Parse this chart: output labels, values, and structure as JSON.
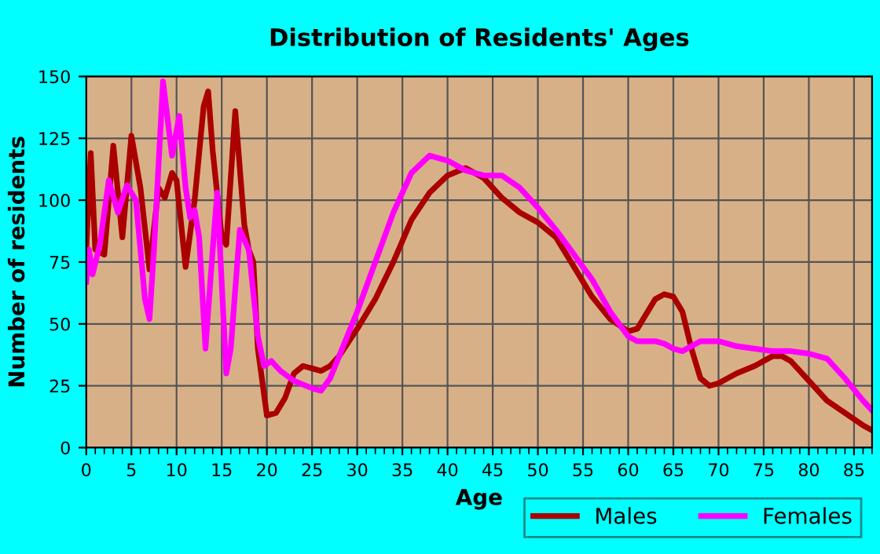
{
  "chart_data": {
    "type": "line",
    "title": "Distribution of Residents' Ages",
    "xlabel": "Age",
    "ylabel": "Number of residents",
    "xlim": [
      0,
      87
    ],
    "xticks": [
      0,
      5,
      10,
      15,
      20,
      25,
      30,
      35,
      40,
      45,
      50,
      55,
      60,
      65,
      70,
      75,
      80,
      85
    ],
    "ylim": [
      0,
      150
    ],
    "yticks": [
      0,
      25,
      50,
      75,
      100,
      125,
      150
    ],
    "grid": true,
    "legend": "bottom",
    "marker": "none",
    "line_style": "solid",
    "series": [
      {
        "name": "Males",
        "color": "#aa0000",
        "x": [
          0,
          0.5,
          1,
          2,
          3,
          4,
          5,
          6,
          7,
          8,
          8.7,
          9.5,
          10,
          11,
          12,
          13,
          13.5,
          14,
          15,
          15.5,
          16.5,
          17.5,
          18,
          18.5,
          19,
          20,
          21,
          22,
          23,
          24,
          25,
          26,
          27,
          28,
          30,
          32,
          34,
          36,
          38,
          40,
          42,
          44,
          46,
          48,
          50,
          52,
          54,
          56,
          58,
          60,
          61,
          62,
          63,
          64,
          65,
          66,
          67,
          68,
          69,
          70,
          72,
          74,
          76,
          77,
          78,
          80,
          82,
          84,
          86,
          87
        ],
        "values": [
          80,
          119,
          80,
          78,
          122,
          85,
          126,
          105,
          72,
          105,
          101,
          111,
          108,
          73,
          100,
          138,
          144,
          120,
          85,
          82,
          136,
          90,
          80,
          75,
          40,
          13,
          14,
          20,
          30,
          33,
          32,
          31,
          33,
          37,
          48,
          60,
          75,
          92,
          103,
          110,
          113,
          109,
          101,
          95,
          91,
          85,
          73,
          61,
          52,
          47,
          48,
          54,
          60,
          62,
          61,
          55,
          40,
          28,
          25,
          26,
          30,
          33,
          37,
          37,
          35,
          27,
          19,
          14,
          9,
          7
        ]
      },
      {
        "name": "Females",
        "color": "#ff00ff",
        "x": [
          0,
          0.3,
          0.7,
          1.5,
          2.5,
          3.5,
          4.5,
          5.5,
          6.5,
          7,
          7.5,
          8.5,
          9.5,
          10.3,
          11,
          11.5,
          12,
          12.5,
          13.2,
          14,
          14.5,
          15.5,
          16,
          17,
          18,
          19,
          19.7,
          20.5,
          21.5,
          23,
          25,
          26,
          27,
          28,
          30,
          32,
          34,
          36,
          38,
          40,
          42,
          44,
          46,
          48,
          50,
          52,
          54,
          56,
          58,
          60,
          61,
          62,
          63,
          64,
          65,
          66,
          67,
          68,
          70,
          72,
          74,
          76,
          78,
          80,
          82,
          84,
          86,
          87
        ],
        "values": [
          67,
          80,
          70,
          82,
          108,
          95,
          106,
          100,
          60,
          52,
          80,
          148,
          118,
          134,
          105,
          93,
          96,
          85,
          40,
          80,
          103,
          30,
          40,
          88,
          80,
          45,
          33,
          35,
          31,
          27,
          24,
          23,
          28,
          37,
          55,
          75,
          95,
          111,
          118,
          116,
          112,
          110,
          110,
          105,
          97,
          88,
          78,
          68,
          55,
          45,
          43,
          43,
          43,
          42,
          40,
          39,
          41,
          43,
          43,
          41,
          40,
          39,
          39,
          38,
          36,
          28,
          19,
          15
        ]
      }
    ]
  }
}
